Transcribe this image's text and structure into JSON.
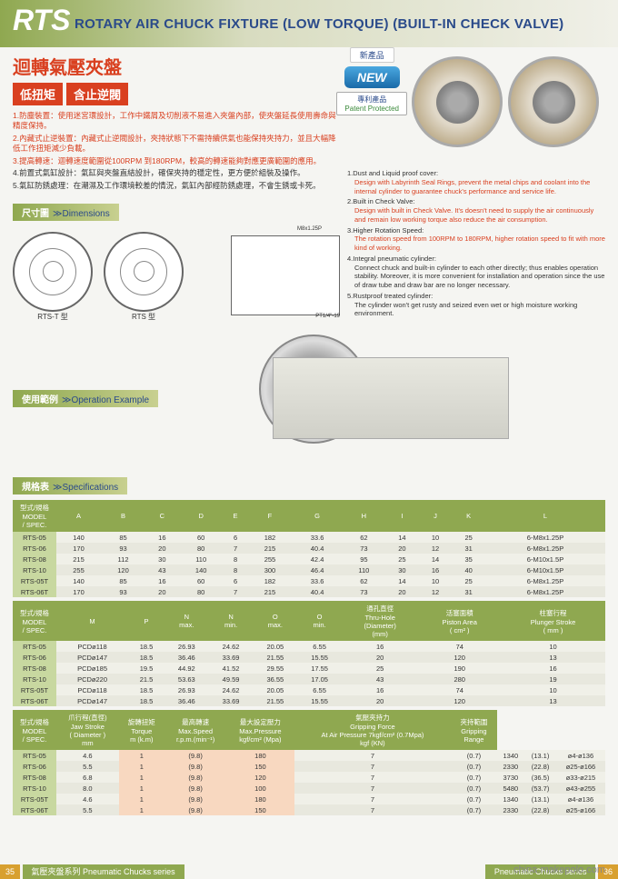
{
  "header": {
    "logo": "RTS",
    "title": "ROTARY AIR CHUCK FIXTURE (LOW TORQUE) (BUILT-IN CHECK VALVE)"
  },
  "titles": {
    "main_ch": "迴轉氣壓夾盤",
    "badge1": "低扭矩",
    "badge2": "含止逆閥",
    "new_ch": "新產品",
    "new_en": "NEW",
    "patent_ch": "專利產品",
    "patent_en": "Patent Protected"
  },
  "ch_features": [
    {
      "num": "1.",
      "title": "防塵裝置：",
      "body": "使用迷宮環設計，工作中鐵屑及切削液不易進入夾盤內部，使夾盤延長使用壽命與精度保持。",
      "red": true
    },
    {
      "num": "2.",
      "title": "內藏式止逆裝置：",
      "body": "內藏式止逆閥設計，夾持狀態下不需持續供氣也能保持夾持力，並且大幅降低工作扭矩減少負載。",
      "red": true
    },
    {
      "num": "3.",
      "title": "提高轉速：",
      "body": "迴轉速度範圍從100RPM 到180RPM，較高的轉速能夠對應更廣範圍的應用。",
      "red": true
    },
    {
      "num": "4.",
      "title": "前置式氣缸設計：",
      "body": "氣缸與夾盤直結設計，確保夾持的穩定性，更方便於組裝及操作。",
      "red": false
    },
    {
      "num": "5.",
      "title": "氣缸防銹處理：",
      "body": "在潮濕及工作環境較差的情況，氣缸內部經防銹處理，不會生銹或卡死。",
      "red": false
    }
  ],
  "en_features": [
    {
      "num": "1.",
      "title": "Dust and Liquid proof cover:",
      "body": "Design with Labyrinth Seal Rings, prevent the metal chips and coolant into the internal cylinder to guarantee chuck's performance and service life.",
      "red": true
    },
    {
      "num": "2.",
      "title": "Built in Check Valve:",
      "body": "Design with built in Check Valve. It's doesn't need to supply the air continuously and remain low working torque also reduce the air consumption.",
      "red": true
    },
    {
      "num": "3.",
      "title": "Higher Rotation Speed:",
      "body": "The rotation speed from 100RPM to 180RPM, higher rotation speed to fit with more kind of working.",
      "red": true
    },
    {
      "num": "4.",
      "title": "Integral pneumatic cylinder:",
      "body": "Connect chuck and built-in cylinder to each other directly; thus enables operation stability. Moreover, it is more convenient for installation and operation since the use of draw tube and draw bar are no longer necessary.",
      "red": false
    },
    {
      "num": "5.",
      "title": "Rustproof treated cylinder:",
      "body": "The cylinder won't get rusty and seized even wet or high moisture working environment.",
      "red": false
    }
  ],
  "sections": {
    "dimensions_ch": "尺寸圖",
    "dimensions_en": "≫Dimensions",
    "opex_ch": "使用範例",
    "opex_en": "≫Operation Example",
    "specs_ch": "規格表",
    "specs_en": "≫Specifications"
  },
  "diagram_labels": {
    "rts_s": "RTS-T 型",
    "rts": "RTS 型",
    "thread": "M8x1.25P",
    "port": "PT1/4\"-19"
  },
  "table1": {
    "header_label": "型式/規格\nMODEL\n/ SPEC.",
    "cols": [
      "A",
      "B",
      "C",
      "D",
      "E",
      "F",
      "G",
      "H",
      "I",
      "J",
      "K",
      "L"
    ],
    "rows": [
      [
        "RTS-05",
        "140",
        "85",
        "16",
        "60",
        "6",
        "182",
        "33.6",
        "62",
        "14",
        "10",
        "25",
        "6-M8x1.25P"
      ],
      [
        "RTS-06",
        "170",
        "93",
        "20",
        "80",
        "7",
        "215",
        "40.4",
        "73",
        "20",
        "12",
        "31",
        "6-M8x1.25P"
      ],
      [
        "RTS-08",
        "215",
        "112",
        "30",
        "110",
        "8",
        "255",
        "42.4",
        "95",
        "25",
        "14",
        "35",
        "6-M10x1.5P"
      ],
      [
        "RTS-10",
        "255",
        "120",
        "43",
        "140",
        "8",
        "300",
        "46.4",
        "110",
        "30",
        "16",
        "40",
        "6-M10x1.5P"
      ],
      [
        "RTS-05T",
        "140",
        "85",
        "16",
        "60",
        "6",
        "182",
        "33.6",
        "62",
        "14",
        "10",
        "25",
        "6-M8x1.25P"
      ],
      [
        "RTS-06T",
        "170",
        "93",
        "20",
        "80",
        "7",
        "215",
        "40.4",
        "73",
        "20",
        "12",
        "31",
        "6-M8x1.25P"
      ]
    ]
  },
  "table2": {
    "cols_complex": [
      "M",
      "P",
      "N\nmax.",
      "N\nmin.",
      "O\nmax.",
      "O\nmin.",
      "通孔直徑\nThru-Hole\n(Diameter)\n(mm)",
      "活塞面積\nPiston Area\n( cm² )",
      "柱塞行程\nPlunger Stroke\n( mm )"
    ],
    "rows": [
      [
        "RTS-05",
        "PCDø118",
        "18.5",
        "26.93",
        "24.62",
        "20.05",
        "6.55",
        "16",
        "74",
        "10"
      ],
      [
        "RTS-06",
        "PCDø147",
        "18.5",
        "36.46",
        "33.69",
        "21.55",
        "15.55",
        "20",
        "120",
        "13"
      ],
      [
        "RTS-08",
        "PCDø185",
        "19.5",
        "44.92",
        "41.52",
        "29.55",
        "17.55",
        "25",
        "190",
        "16"
      ],
      [
        "RTS-10",
        "PCDø220",
        "21.5",
        "53.63",
        "49.59",
        "36.55",
        "17.05",
        "43",
        "280",
        "19"
      ],
      [
        "RTS-05T",
        "PCDø118",
        "18.5",
        "26.93",
        "24.62",
        "20.05",
        "6.55",
        "16",
        "74",
        "10"
      ],
      [
        "RTS-06T",
        "PCDø147",
        "18.5",
        "36.46",
        "33.69",
        "21.55",
        "15.55",
        "20",
        "120",
        "13"
      ]
    ]
  },
  "table3": {
    "cols_complex": [
      "爪行程(直徑)\nJaw Stroke\n( Diameter )\nmm",
      "旋轉扭矩\nTorque\nm     (k.m)",
      "最高轉速\nMax.Speed\nr.p.m.(min⁻¹)",
      "最大設定壓力\nMax.Pressure\nkgf/cm²   (Mpa)",
      "氣壓夾持力\nGripping Force\nAt Air Pressure 7kgf/cm² (0.7Mpa)\nkgf                      (KN)",
      "夾持範圍\nGripping\nRange"
    ],
    "rows": [
      [
        "RTS-05",
        "4.6",
        "1",
        "(9.8)",
        "180",
        "7",
        "(0.7)",
        "1340",
        "(13.1)",
        "ø4-ø136"
      ],
      [
        "RTS-06",
        "5.5",
        "1",
        "(9.8)",
        "150",
        "7",
        "(0.7)",
        "2330",
        "(22.8)",
        "ø25-ø166"
      ],
      [
        "RTS-08",
        "6.8",
        "1",
        "(9.8)",
        "120",
        "7",
        "(0.7)",
        "3730",
        "(36.5)",
        "ø33-ø215"
      ],
      [
        "RTS-10",
        "8.0",
        "1",
        "(9.8)",
        "100",
        "7",
        "(0.7)",
        "5480",
        "(53.7)",
        "ø43-ø255"
      ],
      [
        "RTS-05T",
        "4.6",
        "1",
        "(9.8)",
        "180",
        "7",
        "(0.7)",
        "1340",
        "(13.1)",
        "ø4-ø136"
      ],
      [
        "RTS-06T",
        "5.5",
        "1",
        "(9.8)",
        "150",
        "7",
        "(0.7)",
        "2330",
        "(22.8)",
        "ø25-ø166"
      ]
    ],
    "highlight_cols": [
      2,
      3,
      4
    ]
  },
  "footer": {
    "left_page": "35",
    "left_text": "氣壓夾盤系列  Pneumatic Chucks series",
    "right_text": "Pneumatic Chucks series",
    "right_page": "36",
    "watermark": "china.makepolo.com"
  },
  "colors": {
    "brand_green": "#8fa850",
    "accent_red": "#d94020",
    "title_blue": "#2a4a8a",
    "row_odd": "#f0f0e8",
    "row_even": "#e8e8de",
    "highlight": "#f8d8c0"
  }
}
